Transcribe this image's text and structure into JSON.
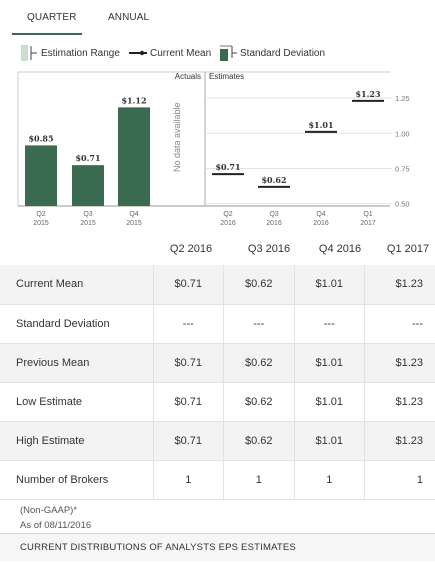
{
  "tabs": [
    {
      "label": "QUARTER",
      "active": true
    },
    {
      "label": "ANNUAL",
      "active": false
    }
  ],
  "legend": {
    "range": "Estimation Range",
    "mean": "Current Mean",
    "stddev": "Standard Deviation"
  },
  "colors": {
    "bar": "#3a6b50",
    "range_fill": "#c9dfcd",
    "accent": "#3a6b50",
    "grid": "#cccccc"
  },
  "chart_data": {
    "type": "bar",
    "section_labels": {
      "actuals": "Actuals",
      "estimates": "Estimates"
    },
    "no_data_text": "No data available",
    "actuals": [
      {
        "quarter": "Q2",
        "year": "2015",
        "value": 0.85,
        "label": "$0.85"
      },
      {
        "quarter": "Q3",
        "year": "2015",
        "value": 0.71,
        "label": "$0.71"
      },
      {
        "quarter": "Q4",
        "year": "2015",
        "value": 1.12,
        "label": "$1.12"
      }
    ],
    "estimates": [
      {
        "quarter": "Q2",
        "year": "2016",
        "value": 0.71,
        "label": "$0.71"
      },
      {
        "quarter": "Q3",
        "year": "2016",
        "value": 0.62,
        "label": "$0.62"
      },
      {
        "quarter": "Q4",
        "year": "2016",
        "value": 1.01,
        "label": "$1.01"
      },
      {
        "quarter": "Q1",
        "year": "2017",
        "value": 1.23,
        "label": "$1.23"
      }
    ],
    "y_ticks": [
      0.5,
      0.75,
      1.0,
      1.25
    ],
    "y_tick_labels": [
      "0.50",
      "0.75",
      "1.00",
      "1.25"
    ],
    "ylim": [
      0.42,
      1.3
    ]
  },
  "table": {
    "columns": [
      "Q2 2016",
      "Q3 2016",
      "Q4 2016",
      "Q1 2017"
    ],
    "rows": [
      {
        "label": "Current Mean",
        "values": [
          "$0.71",
          "$0.62",
          "$1.01",
          "$1.23"
        ]
      },
      {
        "label": "Standard Deviation",
        "values": [
          "---",
          "---",
          "---",
          "---"
        ]
      },
      {
        "label": "Previous Mean",
        "values": [
          "$0.71",
          "$0.62",
          "$1.01",
          "$1.23"
        ]
      },
      {
        "label": "Low Estimate",
        "values": [
          "$0.71",
          "$0.62",
          "$1.01",
          "$1.23"
        ]
      },
      {
        "label": "High Estimate",
        "values": [
          "$0.71",
          "$0.62",
          "$1.01",
          "$1.23"
        ]
      },
      {
        "label": "Number of Brokers",
        "values": [
          "1",
          "1",
          "1",
          "1"
        ]
      }
    ]
  },
  "footnote": {
    "basis": "(Non-GAAP)*",
    "date": "As of 08/11/2016"
  },
  "bottom_bar": "CURRENT DISTRIBUTIONS OF ANALYSTS EPS ESTIMATES"
}
